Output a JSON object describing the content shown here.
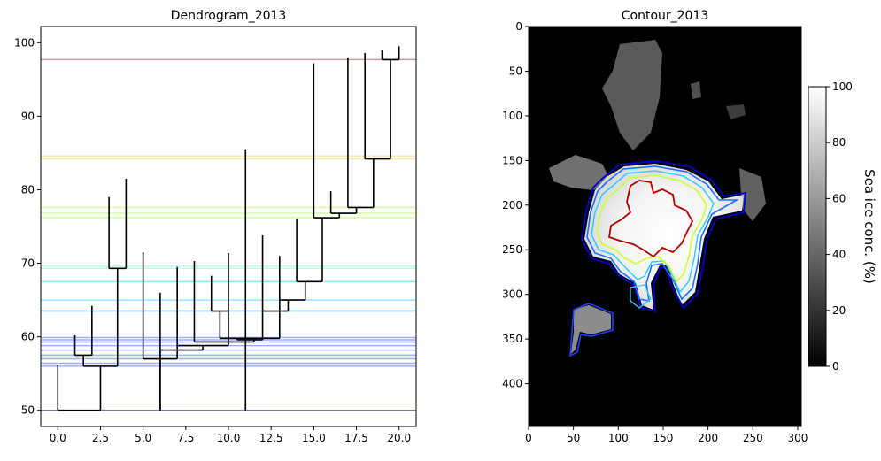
{
  "chart_data": [
    {
      "type": "dendrogram",
      "title": "Dendrogram_2013",
      "xlim": [
        -1,
        21
      ],
      "ylim": [
        47.8,
        102.2
      ],
      "x_ticks": [
        0.0,
        2.5,
        5.0,
        7.5,
        10.0,
        12.5,
        15.0,
        17.5,
        20.0
      ],
      "x_tick_labels": [
        "0.0",
        "2.5",
        "5.0",
        "7.5",
        "10.0",
        "12.5",
        "15.0",
        "17.5",
        "20.0"
      ],
      "y_ticks": [
        50,
        60,
        70,
        80,
        90,
        100
      ],
      "y_tick_labels": [
        "50",
        "60",
        "70",
        "80",
        "90",
        "100"
      ],
      "leaves": [
        {
          "x": 0,
          "top": 56.2
        },
        {
          "x": 1,
          "top": 60.2
        },
        {
          "x": 2,
          "top": 64.2
        },
        {
          "x": 3,
          "top": 79.0
        },
        {
          "x": 4,
          "top": 81.5
        },
        {
          "x": 5,
          "top": 71.5
        },
        {
          "x": 6,
          "top": 66.0
        },
        {
          "x": 7,
          "top": 69.5
        },
        {
          "x": 8,
          "top": 70.3
        },
        {
          "x": 9,
          "top": 68.3
        },
        {
          "x": 10,
          "top": 71.4
        },
        {
          "x": 11,
          "top": 85.5
        },
        {
          "x": 12,
          "top": 73.8
        },
        {
          "x": 13,
          "top": 71.0
        },
        {
          "x": 14,
          "top": 76.0
        },
        {
          "x": 15,
          "top": 97.2
        },
        {
          "x": 16,
          "top": 79.8
        },
        {
          "x": 17,
          "top": 98.0
        },
        {
          "x": 18,
          "top": 98.6
        },
        {
          "x": 19,
          "top": 99.0
        },
        {
          "x": 20,
          "top": 99.5
        }
      ],
      "merges": [
        {
          "left": 0,
          "right": 2.5,
          "height": 50.0,
          "left_bottom": 50.0,
          "right_bottom": 56.0
        },
        {
          "left": 1,
          "right": 2,
          "height": 57.5,
          "left_bottom": 57.5,
          "right_bottom": 57.5
        },
        {
          "left": 1.5,
          "right": 3.5,
          "height": 56.0,
          "left_bottom": 57.5,
          "right_bottom": 69.3
        },
        {
          "left": 3,
          "right": 4,
          "height": 69.3,
          "left_bottom": 69.3,
          "right_bottom": 69.3
        },
        {
          "left": 5,
          "right": 7,
          "height": 57.0,
          "left_bottom": 57.0,
          "right_bottom": 58.2
        },
        {
          "left": 6,
          "right": 8.5,
          "height": 58.2,
          "left_bottom": 50.0,
          "right_bottom": 58.8
        },
        {
          "left": 7,
          "right": 10,
          "height": 58.8,
          "left_bottom": 58.8,
          "right_bottom": 59.3
        },
        {
          "left": 8,
          "right": 11.5,
          "height": 59.3,
          "left_bottom": 59.3,
          "right_bottom": 59.6
        },
        {
          "left": 9,
          "right": 10,
          "height": 63.5,
          "left_bottom": 63.5,
          "right_bottom": 63.5
        },
        {
          "left": 9.5,
          "right": 13,
          "height": 59.8,
          "left_bottom": 63.5,
          "right_bottom": 59.8
        },
        {
          "left": 10.5,
          "right": 12,
          "height": 59.6,
          "left_bottom": 59.8,
          "right_bottom": 59.6
        },
        {
          "left": 12,
          "right": 13.5,
          "height": 63.5,
          "left_bottom": 63.5,
          "right_bottom": 65.0
        },
        {
          "left": 13,
          "right": 14.5,
          "height": 65.0,
          "left_bottom": 65.0,
          "right_bottom": 67.5
        },
        {
          "left": 14,
          "right": 15.5,
          "height": 67.5,
          "left_bottom": 67.5,
          "right_bottom": 76.2
        },
        {
          "left": 15,
          "right": 16.5,
          "height": 76.2,
          "left_bottom": 76.2,
          "right_bottom": 76.8
        },
        {
          "left": 16,
          "right": 17.5,
          "height": 76.8,
          "left_bottom": 76.8,
          "right_bottom": 77.6
        },
        {
          "left": 17,
          "right": 18.5,
          "height": 77.6,
          "left_bottom": 77.6,
          "right_bottom": 84.2
        },
        {
          "left": 18,
          "right": 19.5,
          "height": 84.2,
          "left_bottom": 84.2,
          "right_bottom": 97.7
        },
        {
          "left": 19,
          "right": 20,
          "height": 97.7,
          "left_bottom": 97.7,
          "right_bottom": 97.7
        }
      ],
      "threshold_lines": [
        {
          "y": 97.7,
          "color": "#c0504d"
        },
        {
          "y": 84.6,
          "color": "#ffd580"
        },
        {
          "y": 84.2,
          "color": "#ffd580"
        },
        {
          "y": 77.6,
          "color": "#b3ff66"
        },
        {
          "y": 76.8,
          "color": "#b3ff66"
        },
        {
          "y": 76.2,
          "color": "#b3ff66"
        },
        {
          "y": 69.6,
          "color": "#80ffd4"
        },
        {
          "y": 69.3,
          "color": "#80ffd4"
        },
        {
          "y": 67.5,
          "color": "#40e0d0"
        },
        {
          "y": 65.0,
          "color": "#4dd2ff"
        },
        {
          "y": 63.5,
          "color": "#1e90ff"
        },
        {
          "y": 59.9,
          "color": "#5b7cff"
        },
        {
          "y": 59.6,
          "color": "#5b7cff"
        },
        {
          "y": 59.3,
          "color": "#5b7cff"
        },
        {
          "y": 58.8,
          "color": "#5b7cff"
        },
        {
          "y": 58.2,
          "color": "#5b7cff"
        },
        {
          "y": 57.5,
          "color": "#5b7cff"
        },
        {
          "y": 57.0,
          "color": "#5b7cff"
        },
        {
          "y": 56.4,
          "color": "#5b7cff"
        },
        {
          "y": 56.0,
          "color": "#5b7cff"
        },
        {
          "y": 50.0,
          "color": "#1a1a8c"
        }
      ]
    },
    {
      "type": "heatmap",
      "title": "Contour_2013",
      "xlim": [
        0,
        304
      ],
      "ylim": [
        448,
        0
      ],
      "x_ticks": [
        0,
        50,
        100,
        150,
        200,
        250,
        300
      ],
      "x_tick_labels": [
        "0",
        "50",
        "100",
        "150",
        "200",
        "250",
        "300"
      ],
      "y_ticks": [
        0,
        50,
        100,
        150,
        200,
        250,
        300,
        350,
        400
      ],
      "y_tick_labels": [
        "0",
        "50",
        "100",
        "150",
        "200",
        "250",
        "300",
        "350",
        "400"
      ],
      "colorbar": {
        "label": "Sea ice conc. (%)",
        "range": [
          0,
          100
        ],
        "ticks": [
          0,
          20,
          40,
          60,
          80,
          100
        ],
        "tick_labels": [
          "0",
          "20",
          "40",
          "60",
          "80",
          "100"
        ],
        "colormap": "gray"
      },
      "contour_colors": [
        "#0000cc",
        "#1f6fff",
        "#33ccff",
        "#ccff33",
        "#b30000"
      ]
    }
  ]
}
